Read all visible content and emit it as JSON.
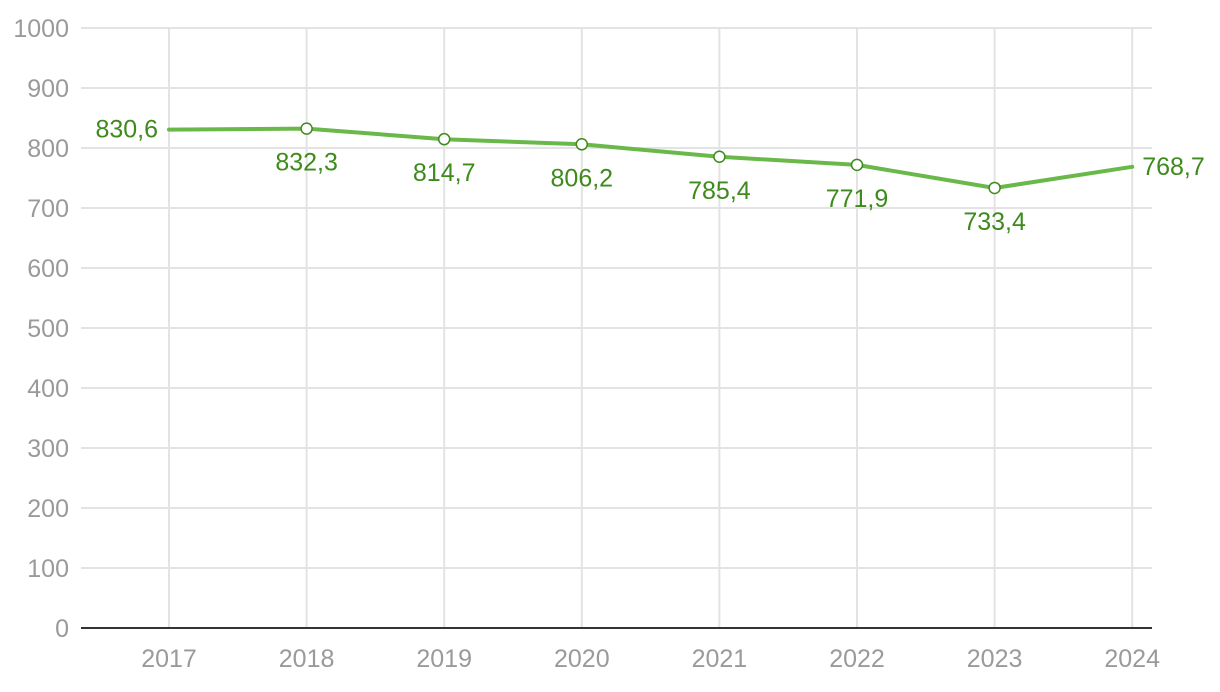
{
  "chart_data": {
    "type": "line",
    "categories": [
      "2017",
      "2018",
      "2019",
      "2020",
      "2021",
      "2022",
      "2023",
      "2024"
    ],
    "series": [
      {
        "values": [
          830.6,
          832.3,
          814.7,
          806.2,
          785.4,
          771.9,
          733.4,
          768.7
        ],
        "labels": [
          "830,6",
          "832,3",
          "814,7",
          "806,2",
          "785,4",
          "771,9",
          "733,4",
          "768,7"
        ]
      }
    ],
    "ylim": [
      0,
      1000
    ],
    "yticks": [
      0,
      100,
      200,
      300,
      400,
      500,
      600,
      700,
      800,
      900,
      1000
    ],
    "grid": true,
    "colors": {
      "line": "#6ab84a",
      "label": "#3e8a1c"
    }
  }
}
